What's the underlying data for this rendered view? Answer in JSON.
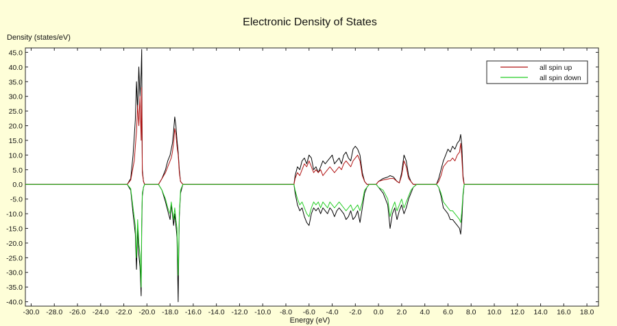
{
  "chart_data": {
    "type": "line",
    "title": "Electronic Density of States",
    "xlabel": "Energy (eV)",
    "ylabel": "Density (states/eV)",
    "xlim": [
      -30.5,
      19.0
    ],
    "ylim": [
      -41.5,
      46.5
    ],
    "x_ticks": [
      "-30.0",
      "-28.0",
      "-26.0",
      "-24.0",
      "-22.0",
      "-20.0",
      "-18.0",
      "-16.0",
      "-14.0",
      "-12.0",
      "-10.0",
      "-8.0",
      "-6.0",
      "-4.0",
      "-2.0",
      "0.0",
      "2.0",
      "4.0",
      "6.0",
      "8.0",
      "10.0",
      "12.0",
      "14.0",
      "16.0",
      "18.0"
    ],
    "y_ticks": [
      "45.0",
      "40.0",
      "35.0",
      "30.0",
      "25.0",
      "20.0",
      "15.0",
      "10.0",
      "5.0",
      "0.0",
      "-5.0",
      "-10.0",
      "-15.0",
      "-20.0",
      "-25.0",
      "-30.0",
      "-35.0",
      "-40.0"
    ],
    "grid": false,
    "legend_position": "top-right",
    "series": [
      {
        "name": "all spin up",
        "color": "#b01010",
        "x": [
          -30.5,
          -21.7,
          -21.4,
          -21.1,
          -20.9,
          -20.8,
          -20.7,
          -20.6,
          -20.5,
          -20.45,
          -20.4,
          -20.3,
          -20.2,
          -19.5,
          -19.0,
          -18.7,
          -18.4,
          -18.2,
          -18.0,
          -17.9,
          -17.8,
          -17.7,
          -17.6,
          -17.5,
          -17.4,
          -17.3,
          -17.2,
          -17.1,
          -16.9,
          -7.3,
          -7.2,
          -7.0,
          -6.8,
          -6.6,
          -6.4,
          -6.2,
          -6.0,
          -5.8,
          -5.6,
          -5.4,
          -5.2,
          -5.0,
          -4.8,
          -4.6,
          -4.4,
          -4.2,
          -4.0,
          -3.8,
          -3.6,
          -3.4,
          -3.2,
          -3.0,
          -2.8,
          -2.6,
          -2.4,
          -2.2,
          -2.0,
          -1.8,
          -1.6,
          -1.4,
          -1.2,
          -1.0,
          -0.8,
          -0.2,
          0.0,
          0.4,
          0.8,
          1.0,
          1.3,
          1.6,
          1.8,
          2.0,
          2.2,
          2.4,
          2.6,
          2.8,
          3.0,
          3.3,
          4.8,
          5.0,
          5.2,
          5.4,
          5.6,
          5.8,
          6.0,
          6.2,
          6.4,
          6.6,
          6.8,
          7.0,
          7.1,
          7.2,
          7.3,
          7.4,
          7.6,
          19.0
        ],
        "y": [
          0,
          0,
          1.5,
          8,
          18,
          27,
          20,
          30,
          15,
          33,
          4,
          1,
          0,
          0,
          0,
          2,
          4,
          6,
          8,
          9,
          11,
          14,
          19,
          17,
          13,
          10,
          4,
          1,
          0,
          0,
          2,
          4,
          3,
          5,
          7,
          6,
          8,
          6,
          4,
          5,
          4,
          5,
          3,
          4,
          5,
          6,
          5,
          4,
          5,
          6,
          5,
          7,
          8,
          7,
          6,
          8,
          9,
          10,
          8,
          3,
          1,
          0,
          0,
          0,
          1,
          1.5,
          1.8,
          2,
          2,
          1,
          0.5,
          3,
          8,
          6,
          2,
          1,
          0,
          0,
          0,
          0,
          1,
          3,
          6,
          7,
          8,
          8,
          9,
          8,
          10,
          11,
          14,
          9,
          2,
          0,
          0,
          0
        ]
      },
      {
        "name": "all spin down",
        "color": "#22cc22",
        "x": [
          -30.5,
          -21.7,
          -21.4,
          -21.2,
          -21.0,
          -20.9,
          -20.8,
          -20.7,
          -20.6,
          -20.5,
          -20.45,
          -20.4,
          -20.3,
          -20.2,
          -19.5,
          -19.0,
          -18.7,
          -18.4,
          -18.2,
          -18.0,
          -17.9,
          -17.8,
          -17.7,
          -17.6,
          -17.5,
          -17.4,
          -17.3,
          -17.2,
          -17.1,
          -16.9,
          -7.3,
          -7.2,
          -7.0,
          -6.8,
          -6.6,
          -6.4,
          -6.2,
          -6.0,
          -5.8,
          -5.6,
          -5.4,
          -5.2,
          -5.0,
          -4.8,
          -4.6,
          -4.4,
          -4.2,
          -4.0,
          -3.8,
          -3.6,
          -3.4,
          -3.2,
          -3.0,
          -2.8,
          -2.6,
          -2.4,
          -2.2,
          -2.0,
          -1.8,
          -1.6,
          -1.4,
          -1.2,
          -1.0,
          -0.8,
          -0.2,
          0.0,
          0.4,
          0.8,
          1.0,
          1.2,
          1.4,
          1.6,
          1.8,
          2.0,
          2.2,
          2.4,
          2.6,
          2.8,
          3.0,
          3.3,
          4.8,
          5.0,
          5.2,
          5.4,
          5.6,
          5.8,
          6.0,
          6.2,
          6.4,
          6.6,
          6.8,
          7.0,
          7.1,
          7.2,
          7.3,
          7.4,
          7.6,
          19.0
        ],
        "y": [
          0,
          0,
          -1.5,
          -8,
          -14,
          -25,
          -12,
          -20,
          -24,
          -35,
          -12,
          -3,
          -1,
          0,
          0,
          0,
          -2,
          -5,
          -8,
          -10,
          -6,
          -9,
          -12,
          -8,
          -12,
          -15,
          -31,
          -10,
          -2,
          0,
          0,
          -2,
          -5,
          -7,
          -6,
          -8,
          -10,
          -11,
          -8,
          -6,
          -7,
          -6,
          -8,
          -6,
          -7,
          -8,
          -6,
          -7,
          -8,
          -7,
          -6,
          -7,
          -8,
          -9,
          -8,
          -7,
          -9,
          -8,
          -7,
          -9,
          -6,
          -2,
          -1,
          0,
          0,
          -1,
          -2,
          -5,
          -11,
          -8,
          -6,
          -9,
          -7,
          -5,
          -8,
          -6,
          -4,
          -2,
          -1,
          0,
          0,
          0,
          -1,
          -3,
          -6,
          -7,
          -8,
          -9,
          -9,
          -10,
          -11,
          -12,
          -13,
          -9,
          -3,
          0,
          0,
          0
        ]
      },
      {
        "name": "",
        "color": "#000000",
        "x": [
          -30.5,
          -21.7,
          -21.4,
          -21.2,
          -21.0,
          -20.9,
          -20.8,
          -20.7,
          -20.6,
          -20.5,
          -20.45,
          -20.42,
          -20.4,
          -20.3,
          -20.2,
          -19.5,
          -19.0,
          -18.7,
          -18.4,
          -18.2,
          -18.0,
          -17.9,
          -17.8,
          -17.7,
          -17.6,
          -17.5,
          -17.4,
          -17.3,
          -17.2,
          -17.1,
          -16.9,
          -7.3,
          -7.2,
          -7.0,
          -6.8,
          -6.6,
          -6.4,
          -6.2,
          -6.0,
          -5.8,
          -5.6,
          -5.4,
          -5.2,
          -5.0,
          -4.8,
          -4.6,
          -4.4,
          -4.2,
          -4.0,
          -3.8,
          -3.6,
          -3.4,
          -3.2,
          -3.0,
          -2.8,
          -2.6,
          -2.4,
          -2.2,
          -2.0,
          -1.8,
          -1.6,
          -1.4,
          -1.2,
          -1.0,
          -0.8,
          -0.2,
          0.0,
          0.4,
          0.8,
          1.0,
          1.3,
          1.6,
          1.8,
          2.0,
          2.2,
          2.4,
          2.6,
          2.8,
          3.0,
          3.3,
          4.8,
          5.0,
          5.2,
          5.4,
          5.6,
          5.8,
          6.0,
          6.2,
          6.4,
          6.6,
          6.8,
          7.0,
          7.1,
          7.2,
          7.3,
          7.4,
          7.6,
          19.0
        ],
        "y": [
          0,
          0,
          2,
          10,
          22,
          35,
          25,
          40,
          30,
          38,
          46,
          20,
          5,
          1,
          0,
          0,
          0,
          2,
          5,
          8,
          10,
          12,
          14,
          18,
          23,
          20,
          15,
          11,
          5,
          1,
          0,
          0,
          3,
          6,
          5,
          8,
          9,
          7,
          10,
          9,
          5,
          6,
          4,
          6,
          8,
          7,
          8,
          9,
          10,
          7,
          8,
          9,
          7,
          10,
          11,
          9,
          8,
          12,
          13,
          12,
          10,
          4,
          1,
          0,
          0,
          0,
          1,
          2,
          2.5,
          3,
          2.5,
          1,
          0.5,
          4,
          10,
          8,
          3,
          1,
          0,
          0,
          0,
          0,
          2,
          5,
          8,
          10,
          12,
          11,
          13,
          12,
          14,
          15,
          17,
          13,
          3,
          0,
          0,
          0
        ]
      },
      {
        "name": "",
        "color": "#000000",
        "x": [
          -30.5,
          -21.7,
          -21.4,
          -21.2,
          -21.0,
          -20.9,
          -20.8,
          -20.7,
          -20.6,
          -20.5,
          -20.45,
          -20.4,
          -20.3,
          -20.2,
          -19.5,
          -19.0,
          -18.7,
          -18.4,
          -18.2,
          -18.0,
          -17.9,
          -17.8,
          -17.7,
          -17.6,
          -17.5,
          -17.4,
          -17.3,
          -17.25,
          -17.2,
          -17.1,
          -16.9,
          -7.3,
          -7.2,
          -7.0,
          -6.8,
          -6.6,
          -6.4,
          -6.2,
          -6.0,
          -5.8,
          -5.6,
          -5.4,
          -5.2,
          -5.0,
          -4.8,
          -4.6,
          -4.4,
          -4.2,
          -4.0,
          -3.8,
          -3.6,
          -3.4,
          -3.2,
          -3.0,
          -2.8,
          -2.6,
          -2.4,
          -2.2,
          -2.0,
          -1.8,
          -1.6,
          -1.4,
          -1.2,
          -1.0,
          -0.8,
          -0.2,
          0.0,
          0.4,
          0.8,
          1.0,
          1.2,
          1.4,
          1.6,
          1.8,
          2.0,
          2.2,
          2.4,
          2.6,
          2.8,
          3.0,
          3.3,
          4.8,
          5.0,
          5.2,
          5.4,
          5.6,
          5.8,
          6.0,
          6.2,
          6.4,
          6.6,
          6.8,
          7.0,
          7.1,
          7.2,
          7.3,
          7.4,
          7.6,
          19.0
        ],
        "y": [
          0,
          0,
          -2,
          -10,
          -17,
          -29,
          -15,
          -24,
          -28,
          -38,
          -15,
          -4,
          -1,
          0,
          0,
          0,
          -2,
          -6,
          -9,
          -12,
          -7,
          -10,
          -14,
          -10,
          -14,
          -18,
          -40,
          -22,
          -11,
          -3,
          0,
          0,
          -3,
          -7,
          -9,
          -8,
          -11,
          -13,
          -14,
          -10,
          -8,
          -9,
          -8,
          -10,
          -8,
          -9,
          -10,
          -8,
          -9,
          -11,
          -9,
          -8,
          -9,
          -10,
          -12,
          -11,
          -9,
          -12,
          -11,
          -9,
          -13,
          -8,
          -3,
          -1,
          0,
          0,
          -1,
          -3,
          -7,
          -15,
          -10,
          -8,
          -12,
          -9,
          -7,
          -10,
          -8,
          -5,
          -3,
          -1,
          0,
          0,
          0,
          -1,
          -4,
          -8,
          -9,
          -10,
          -12,
          -12,
          -13,
          -14,
          -15,
          -17,
          -12,
          -4,
          0,
          0,
          0
        ]
      }
    ]
  }
}
